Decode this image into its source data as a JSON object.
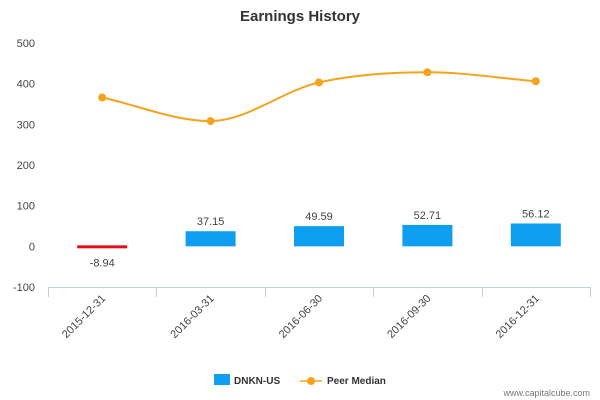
{
  "chart_data": {
    "type": "bar",
    "title": "Earnings History",
    "categories": [
      "2015-12-31",
      "2016-03-31",
      "2016-06-30",
      "2016-09-30",
      "2016-12-31"
    ],
    "series": [
      {
        "name": "DNKN-US",
        "kind": "bar",
        "values": [
          -8.94,
          37.15,
          49.59,
          52.71,
          56.12
        ],
        "labels": [
          "-8.94",
          "37.15",
          "49.59",
          "52.71",
          "56.12"
        ],
        "color": "#0d9ef0",
        "negative_color": "#e0101a"
      },
      {
        "name": "Peer Median",
        "kind": "line",
        "values": [
          366,
          308,
          403,
          428,
          406
        ],
        "color": "#f5a31d"
      }
    ],
    "ylim": [
      -100,
      500
    ],
    "yticks": [
      -100,
      0,
      100,
      200,
      300,
      400,
      500
    ],
    "ytick_labels": [
      "-100",
      "0",
      "100",
      "200",
      "300",
      "400",
      "500"
    ],
    "xlabel": "",
    "ylabel": "",
    "grid": false,
    "legend_position": "bottom-center"
  },
  "credit": "www.capitalcube.com"
}
